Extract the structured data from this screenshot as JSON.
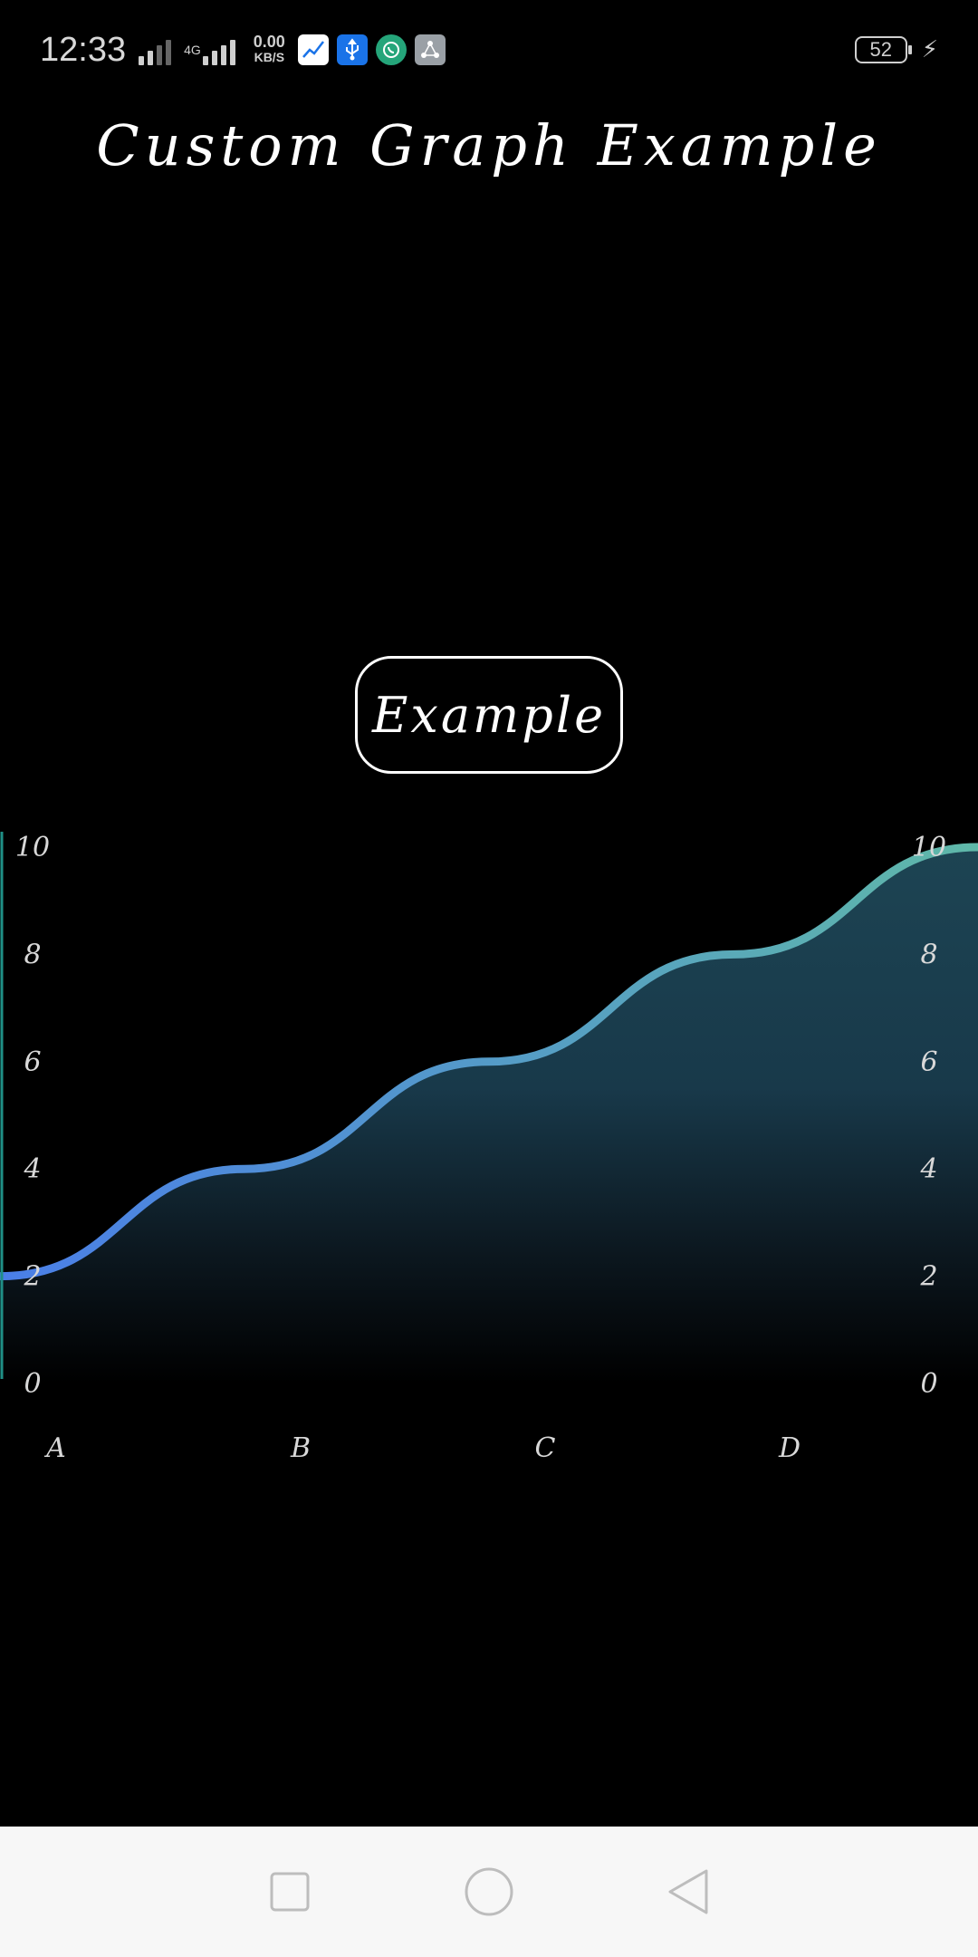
{
  "status_bar": {
    "time": "12:33",
    "network": "4G",
    "speed_value": "0.00",
    "speed_unit": "KB/S",
    "battery": "52",
    "icons": [
      "chart-app-icon",
      "usb-icon",
      "whatsapp-icon",
      "share-icon"
    ]
  },
  "title": "Custom Graph Example",
  "button": {
    "label": "Example"
  },
  "chart_data": {
    "type": "area",
    "title": "",
    "categories": [
      "A",
      "B",
      "C",
      "D"
    ],
    "x": [
      0,
      1,
      2,
      3,
      4
    ],
    "values": [
      2,
      4,
      6,
      8,
      10
    ],
    "y_ticks": [
      "0",
      "2",
      "4",
      "6",
      "8",
      "10"
    ],
    "ylim": [
      0,
      10
    ],
    "line_color_start": "#4a7ee8",
    "line_color_end": "#5fb8a8",
    "fill_color": "#1a3a4a",
    "axis_color": "#1f8f86",
    "grid": false
  },
  "nav_bar": {
    "buttons": [
      "recents-button",
      "home-button",
      "back-button"
    ]
  }
}
